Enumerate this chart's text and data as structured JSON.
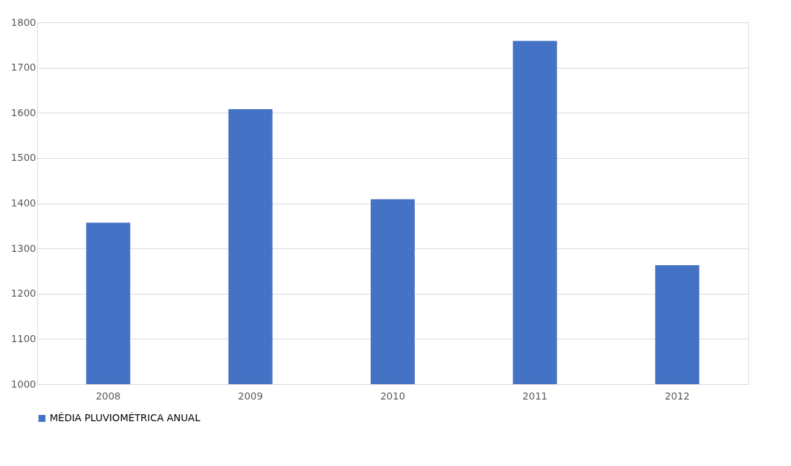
{
  "chart_data": {
    "type": "bar",
    "categories": [
      "2008",
      "2009",
      "2010",
      "2011",
      "2012"
    ],
    "series": [
      {
        "name": "MÉDIA PLUVIOMÉTRICA ANUAL",
        "color": "#4472c4",
        "values": [
          1357,
          1608,
          1409,
          1759,
          1263
        ]
      }
    ],
    "ylim": [
      1000,
      1800
    ],
    "yticks": [
      1000,
      1100,
      1200,
      1300,
      1400,
      1500,
      1600,
      1700,
      1800
    ],
    "grid": "y",
    "legend": "bottom"
  }
}
